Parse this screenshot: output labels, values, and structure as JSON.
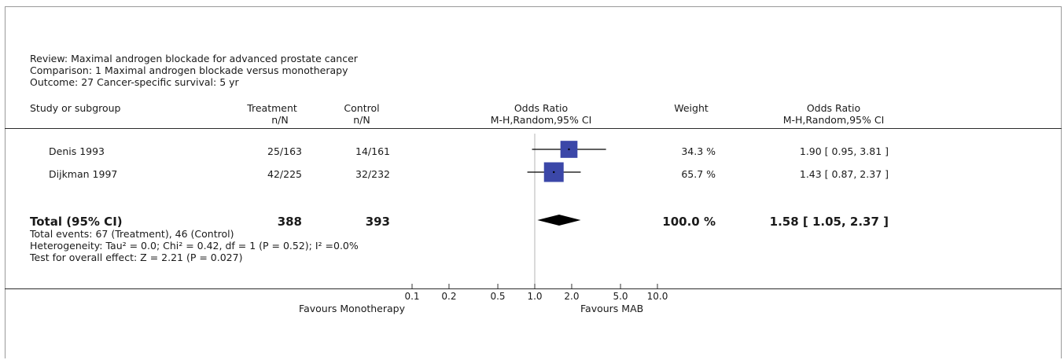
{
  "header": {
    "review": "Review:  Maximal androgen blockade for advanced prostate cancer",
    "comparison": "Comparison:  1 Maximal androgen blockade versus monotherapy",
    "outcome": "Outcome:  27 Cancer-specific survival: 5 yr"
  },
  "columns": {
    "study": "Study or subgroup",
    "treatment": "Treatment",
    "treatment_sub": "n/N",
    "control": "Control",
    "control_sub": "n/N",
    "or_plot": "Odds Ratio",
    "or_plot_sub": "M-H,Random,95% CI",
    "weight": "Weight",
    "or_text": "Odds Ratio",
    "or_text_sub": "M-H,Random,95% CI"
  },
  "studies": [
    {
      "name": "Denis 1993",
      "treatment": "25/163",
      "control": "14/161",
      "weight": "34.3 %",
      "or_text": "1.90 [ 0.95, 3.81 ]"
    },
    {
      "name": "Dijkman 1997",
      "treatment": "42/225",
      "control": "32/232",
      "weight": "65.7 %",
      "or_text": "1.43 [ 0.87, 2.37 ]"
    }
  ],
  "total": {
    "label": "Total (95% CI)",
    "treatment": "388",
    "control": "393",
    "weight": "100.0 %",
    "or_text": "1.58 [ 1.05, 2.37 ]",
    "events": "Total events: 67 (Treatment), 46 (Control)",
    "heterogeneity": "Heterogeneity: Tau² = 0.0; Chi² = 0.42, df = 1 (P = 0.52); I² =0.0%",
    "overall_effect": "Test for overall effect: Z = 2.21 (P = 0.027)"
  },
  "axis": {
    "favours_left": "Favours Monotherapy",
    "favours_right": "Favours MAB"
  },
  "colors": {
    "box": "#3b47a8",
    "diamond": "#000000",
    "line": "#000000"
  },
  "chart_data": {
    "type": "forest",
    "x_scale": "log",
    "xlim": [
      0.1,
      10.0
    ],
    "ticks": [
      0.1,
      0.2,
      0.5,
      1.0,
      2.0,
      5.0,
      10.0
    ],
    "tick_labels": [
      "0.1",
      "0.2",
      "0.5",
      "1.0",
      "2.0",
      "5.0",
      "10.0"
    ],
    "reference_line": 1.0,
    "studies": [
      {
        "name": "Denis 1993",
        "or": 1.9,
        "lower": 0.95,
        "upper": 3.81,
        "weight": 34.3
      },
      {
        "name": "Dijkman 1997",
        "or": 1.43,
        "lower": 0.87,
        "upper": 2.37,
        "weight": 65.7
      }
    ],
    "pooled": {
      "or": 1.58,
      "lower": 1.05,
      "upper": 2.37
    }
  }
}
